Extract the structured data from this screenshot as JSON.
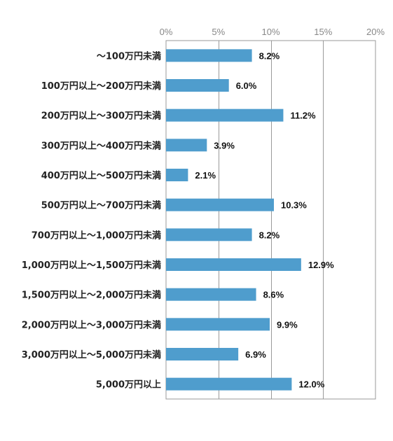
{
  "chart_data": {
    "type": "bar",
    "orientation": "horizontal",
    "categories": [
      "～100万円未満",
      "100万円以上～200万円未満",
      "200万円以上～300万円未満",
      "300万円以上～400万円未満",
      "400万円以上～500万円未満",
      "500万円以上～700万円未満",
      "700万円以上～1,000万円未満",
      "1,000万円以上～1,500万円未満",
      "1,500万円以上～2,000万円未満",
      "2,000万円以上～3,000万円未満",
      "3,000万円以上～5,000万円未満",
      "5,000万円以上"
    ],
    "values": [
      8.2,
      6.0,
      11.2,
      3.9,
      2.1,
      10.3,
      8.2,
      12.9,
      8.6,
      9.9,
      6.9,
      12.0
    ],
    "value_labels": [
      "8.2%",
      "6.0%",
      "11.2%",
      "3.9%",
      "2.1%",
      "10.3%",
      "8.2%",
      "12.9%",
      "8.6%",
      "9.9%",
      "6.9%",
      "12.0%"
    ],
    "xlim": [
      0,
      20
    ],
    "x_ticks": [
      0,
      5,
      10,
      15,
      20
    ],
    "x_tick_labels": [
      "0%",
      "5%",
      "10%",
      "15%",
      "20%"
    ],
    "x_axis_position": "top",
    "grid": true,
    "colors": {
      "bar": "#4f9dcd",
      "grid": "#9a9a9a",
      "frame": "#9a9a9a"
    }
  }
}
